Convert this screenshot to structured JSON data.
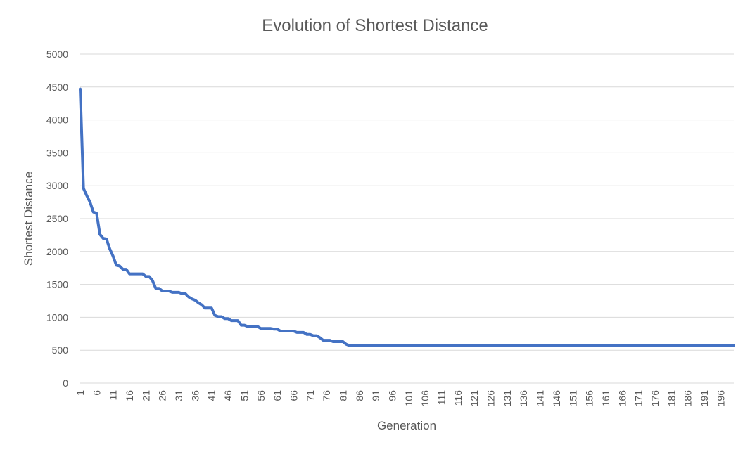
{
  "chart_data": {
    "type": "line",
    "title": "Evolution of Shortest Distance",
    "xlabel": "Generation",
    "ylabel": "Shortest Distance",
    "ylim": [
      0,
      5000
    ],
    "yticks": [
      0,
      500,
      1000,
      1500,
      2000,
      2500,
      3000,
      3500,
      4000,
      4500,
      5000
    ],
    "x_tick_labels": [
      "1",
      "6",
      "11",
      "16",
      "21",
      "26",
      "31",
      "36",
      "41",
      "46",
      "51",
      "56",
      "61",
      "66",
      "71",
      "76",
      "81",
      "86",
      "91",
      "96",
      "101",
      "106",
      "111",
      "116",
      "121",
      "126",
      "131",
      "136",
      "141",
      "146",
      "151",
      "156",
      "161",
      "166",
      "171",
      "176",
      "181",
      "186",
      "191",
      "196"
    ],
    "grid": true,
    "legend": "none",
    "line_color": "#4472c4",
    "series": [
      {
        "x": [
          1,
          2,
          3,
          4,
          5,
          6,
          7,
          8,
          9,
          10,
          11,
          12,
          13,
          14,
          15,
          16,
          17,
          18,
          19,
          20,
          21,
          22,
          23,
          24,
          25,
          26,
          27,
          28,
          29,
          30,
          31,
          32,
          33,
          34,
          35,
          36,
          37,
          38,
          39,
          40,
          41,
          42,
          43,
          44,
          45,
          46,
          47,
          48,
          49,
          50,
          51,
          52,
          53,
          54,
          55,
          56,
          57,
          58,
          59,
          60,
          61,
          62,
          63,
          64,
          65,
          66,
          67,
          68,
          69,
          70,
          71,
          72,
          73,
          74,
          75,
          76,
          77,
          78,
          79,
          80,
          81,
          82,
          83,
          200
        ],
        "values": [
          4470,
          2960,
          2850,
          2750,
          2600,
          2580,
          2260,
          2200,
          2190,
          2040,
          1930,
          1790,
          1780,
          1730,
          1730,
          1660,
          1660,
          1660,
          1660,
          1660,
          1620,
          1620,
          1560,
          1440,
          1440,
          1400,
          1400,
          1400,
          1380,
          1380,
          1380,
          1360,
          1360,
          1310,
          1280,
          1260,
          1220,
          1190,
          1140,
          1140,
          1140,
          1030,
          1010,
          1010,
          980,
          980,
          950,
          950,
          950,
          880,
          880,
          860,
          860,
          860,
          860,
          830,
          830,
          830,
          830,
          820,
          820,
          790,
          790,
          790,
          790,
          790,
          770,
          770,
          770,
          740,
          740,
          720,
          720,
          690,
          650,
          650,
          650,
          630,
          630,
          630,
          630,
          590,
          570,
          570
        ]
      }
    ]
  }
}
